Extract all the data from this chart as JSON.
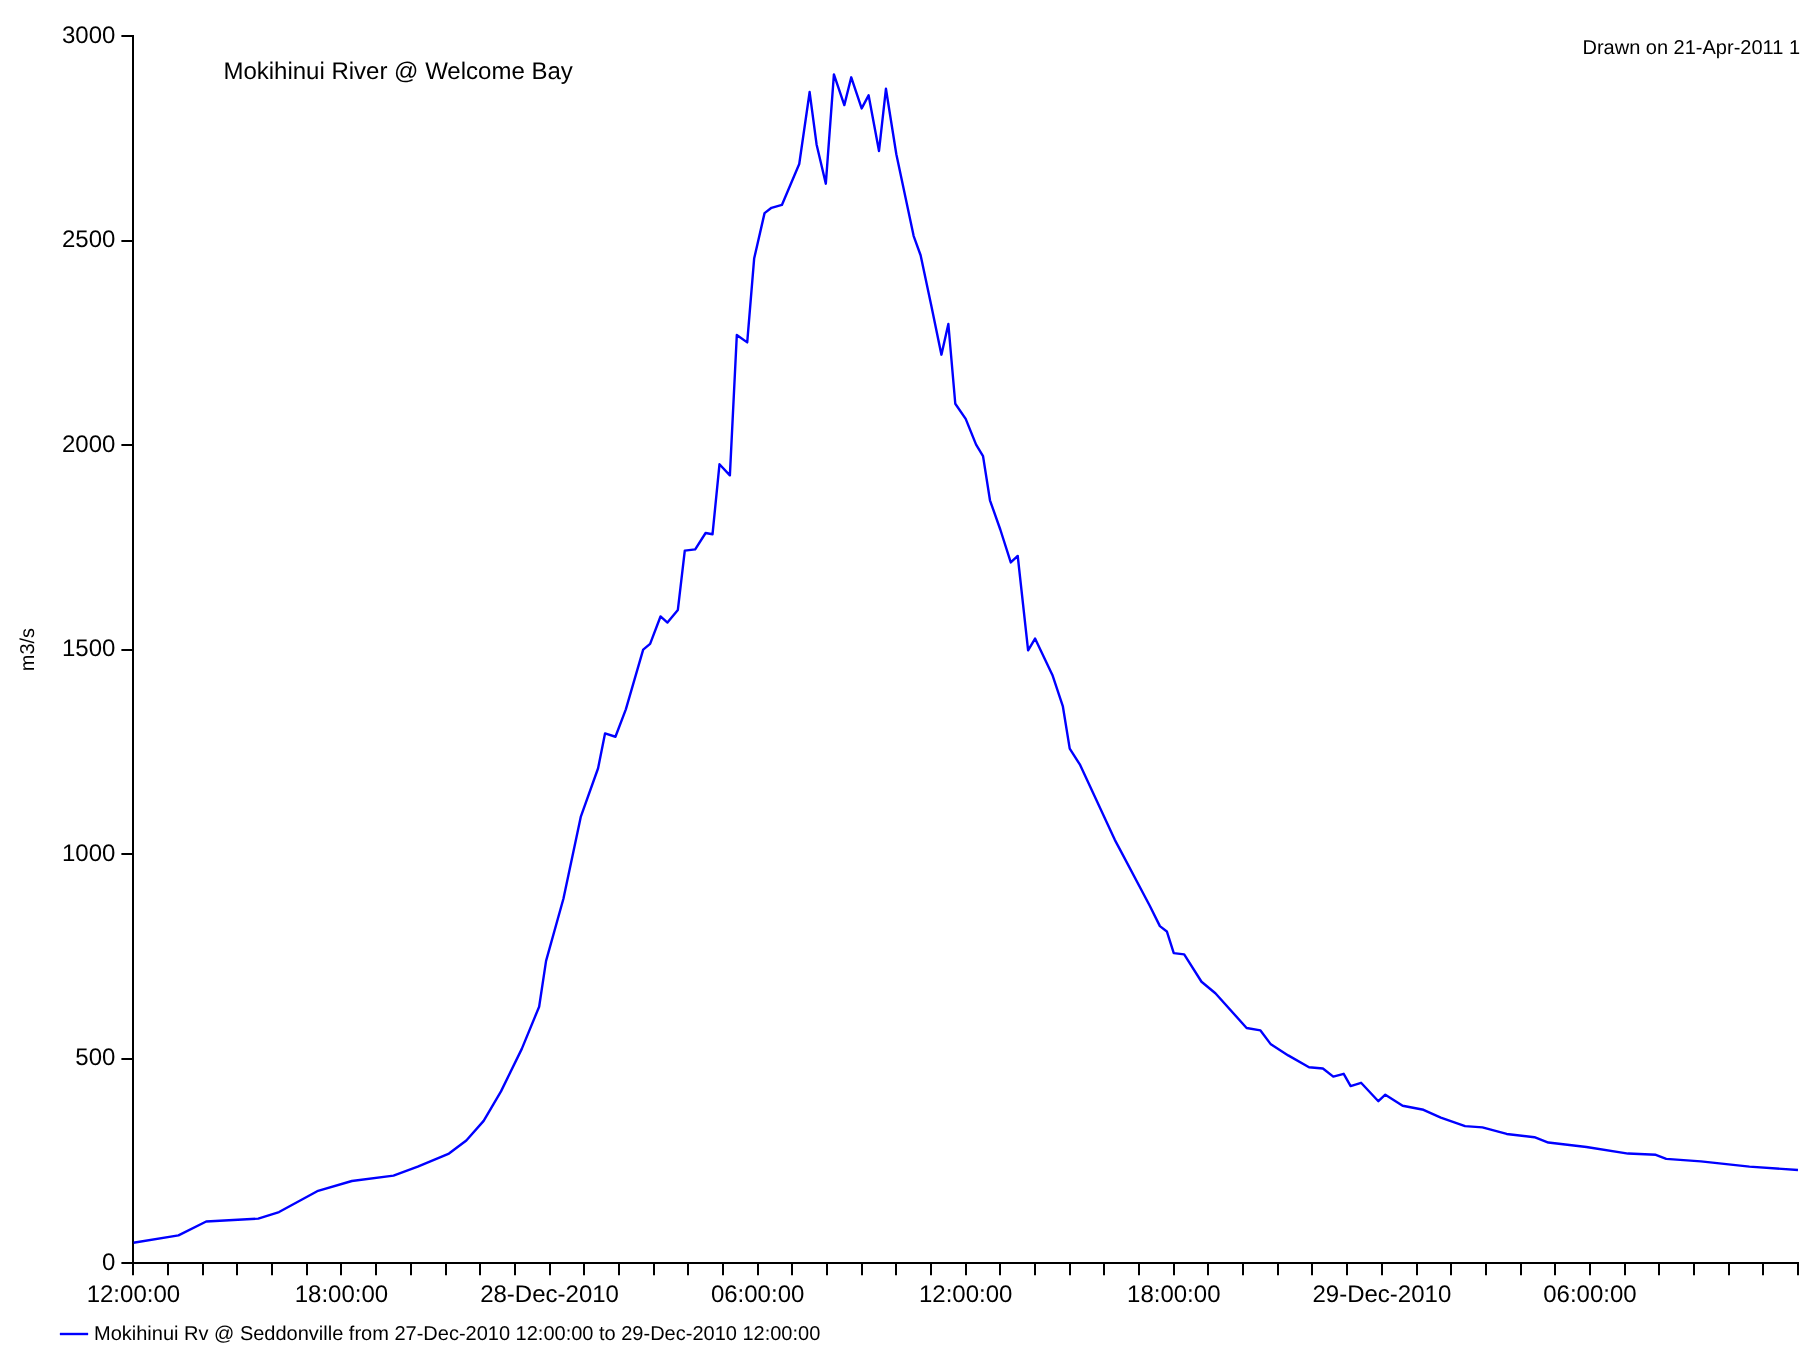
{
  "chart_data": {
    "type": "line",
    "title": "Mokihinui River @ Welcome Bay",
    "ylabel": "m3/s",
    "annotations": [
      "Drawn on 21-Apr-2011 1"
    ],
    "x": [
      "2010-12-27T12:00",
      "2010-12-27T13:18",
      "2010-12-27T14:06",
      "2010-12-27T15:36",
      "2010-12-27T16:12",
      "2010-12-27T17:18",
      "2010-12-27T18:18",
      "2010-12-27T19:30",
      "2010-12-27T20:12",
      "2010-12-27T21:06",
      "2010-12-27T21:36",
      "2010-12-27T22:06",
      "2010-12-27T22:36",
      "2010-12-27T23:12",
      "2010-12-27T23:42",
      "2010-12-27T23:54",
      "2010-12-28T00:24",
      "2010-12-28T00:54",
      "2010-12-28T01:24",
      "2010-12-28T01:36",
      "2010-12-28T01:54",
      "2010-12-28T02:12",
      "2010-12-28T02:42",
      "2010-12-28T02:54",
      "2010-12-28T03:12",
      "2010-12-28T03:24",
      "2010-12-28T03:42",
      "2010-12-28T03:54",
      "2010-12-28T04:12",
      "2010-12-28T04:30",
      "2010-12-28T04:42",
      "2010-12-28T04:54",
      "2010-12-28T05:12",
      "2010-12-28T05:24",
      "2010-12-28T05:42",
      "2010-12-28T05:54",
      "2010-12-28T06:12",
      "2010-12-28T06:24",
      "2010-12-28T06:42",
      "2010-12-28T07:12",
      "2010-12-28T07:30",
      "2010-12-28T07:42",
      "2010-12-28T07:58",
      "2010-12-28T08:12",
      "2010-12-28T08:30",
      "2010-12-28T08:42",
      "2010-12-28T09:00",
      "2010-12-28T09:12",
      "2010-12-28T09:30",
      "2010-12-28T09:42",
      "2010-12-28T10:00",
      "2010-12-28T10:30",
      "2010-12-28T10:42",
      "2010-12-28T11:00",
      "2010-12-28T11:18",
      "2010-12-28T11:30",
      "2010-12-28T11:42",
      "2010-12-28T12:00",
      "2010-12-28T12:18",
      "2010-12-28T12:30",
      "2010-12-28T12:42",
      "2010-12-28T13:00",
      "2010-12-28T13:18",
      "2010-12-28T13:30",
      "2010-12-28T13:48",
      "2010-12-28T14:00",
      "2010-12-28T14:30",
      "2010-12-28T14:48",
      "2010-12-28T15:00",
      "2010-12-28T15:18",
      "2010-12-28T16:18",
      "2010-12-28T16:30",
      "2010-12-28T17:18",
      "2010-12-28T17:36",
      "2010-12-28T17:48",
      "2010-12-28T18:00",
      "2010-12-28T18:18",
      "2010-12-28T18:48",
      "2010-12-28T19:12",
      "2010-12-28T20:06",
      "2010-12-28T20:30",
      "2010-12-28T20:48",
      "2010-12-28T21:18",
      "2010-12-28T21:54",
      "2010-12-28T22:18",
      "2010-12-28T22:36",
      "2010-12-28T22:54",
      "2010-12-28T23:06",
      "2010-12-28T23:24",
      "2010-12-28T23:54",
      "2010-12-29T00:06",
      "2010-12-29T00:36",
      "2010-12-29T01:12",
      "2010-12-29T01:42",
      "2010-12-29T02:24",
      "2010-12-29T02:54",
      "2010-12-29T03:36",
      "2010-12-29T04:24",
      "2010-12-29T04:48",
      "2010-12-29T05:54",
      "2010-12-29T07:06",
      "2010-12-29T07:54",
      "2010-12-29T08:12",
      "2010-12-29T09:12",
      "2010-12-29T10:36",
      "2010-12-29T12:00"
    ],
    "series": [
      {
        "name": "Mokihinui Rv @ Seddonville from 27-Dec-2010 12:00:00 to 29-Dec-2010 12:00:00",
        "color": "#0000ff",
        "values": [
          50,
          68,
          102,
          109,
          125,
          176,
          201,
          214,
          236,
          268,
          300,
          348,
          420,
          524,
          627,
          739,
          891,
          1091,
          1210,
          1295,
          1287,
          1354,
          1500,
          1514,
          1581,
          1566,
          1597,
          1742,
          1745,
          1785,
          1782,
          1953,
          1926,
          2269,
          2251,
          2456,
          2567,
          2580,
          2587,
          2687,
          2863,
          2735,
          2639,
          2906,
          2831,
          2899,
          2823,
          2855,
          2719,
          2871,
          2711,
          2511,
          2464,
          2344,
          2221,
          2296,
          2101,
          2064,
          2001,
          1973,
          1865,
          1793,
          1713,
          1729,
          1498,
          1527,
          1438,
          1362,
          1258,
          1218,
          1035,
          1003,
          875,
          824,
          811,
          758,
          755,
          688,
          660,
          575,
          569,
          535,
          508,
          479,
          476,
          456,
          463,
          433,
          441,
          396,
          412,
          385,
          375,
          356,
          335,
          332,
          316,
          308,
          295,
          284,
          268,
          265,
          255,
          249,
          236,
          228
        ]
      }
    ],
    "xlim": [
      "2010-12-27T12:00",
      "2010-12-29T12:00"
    ],
    "xticks": [
      {
        "value": "2010-12-27T12:00",
        "label": "12:00:00"
      },
      {
        "value": "2010-12-27T13:00",
        "label": null
      },
      {
        "value": "2010-12-27T14:00",
        "label": null
      },
      {
        "value": "2010-12-27T15:00",
        "label": null
      },
      {
        "value": "2010-12-27T16:00",
        "label": null
      },
      {
        "value": "2010-12-27T17:00",
        "label": null
      },
      {
        "value": "2010-12-27T18:00",
        "label": "18:00:00"
      },
      {
        "value": "2010-12-27T19:00",
        "label": null
      },
      {
        "value": "2010-12-27T20:00",
        "label": null
      },
      {
        "value": "2010-12-27T21:00",
        "label": null
      },
      {
        "value": "2010-12-27T22:00",
        "label": null
      },
      {
        "value": "2010-12-27T23:00",
        "label": null
      },
      {
        "value": "2010-12-28T00:00",
        "label": "28-Dec-2010"
      },
      {
        "value": "2010-12-28T01:00",
        "label": null
      },
      {
        "value": "2010-12-28T02:00",
        "label": null
      },
      {
        "value": "2010-12-28T03:00",
        "label": null
      },
      {
        "value": "2010-12-28T04:00",
        "label": null
      },
      {
        "value": "2010-12-28T05:00",
        "label": null
      },
      {
        "value": "2010-12-28T06:00",
        "label": "06:00:00"
      },
      {
        "value": "2010-12-28T07:00",
        "label": null
      },
      {
        "value": "2010-12-28T08:00",
        "label": null
      },
      {
        "value": "2010-12-28T09:00",
        "label": null
      },
      {
        "value": "2010-12-28T10:00",
        "label": null
      },
      {
        "value": "2010-12-28T11:00",
        "label": null
      },
      {
        "value": "2010-12-28T12:00",
        "label": "12:00:00"
      },
      {
        "value": "2010-12-28T13:00",
        "label": null
      },
      {
        "value": "2010-12-28T14:00",
        "label": null
      },
      {
        "value": "2010-12-28T15:00",
        "label": null
      },
      {
        "value": "2010-12-28T16:00",
        "label": null
      },
      {
        "value": "2010-12-28T17:00",
        "label": null
      },
      {
        "value": "2010-12-28T18:00",
        "label": "18:00:00"
      },
      {
        "value": "2010-12-28T19:00",
        "label": null
      },
      {
        "value": "2010-12-28T20:00",
        "label": null
      },
      {
        "value": "2010-12-28T21:00",
        "label": null
      },
      {
        "value": "2010-12-28T22:00",
        "label": null
      },
      {
        "value": "2010-12-28T23:00",
        "label": null
      },
      {
        "value": "2010-12-29T00:00",
        "label": "29-Dec-2010"
      },
      {
        "value": "2010-12-29T01:00",
        "label": null
      },
      {
        "value": "2010-12-29T02:00",
        "label": null
      },
      {
        "value": "2010-12-29T03:00",
        "label": null
      },
      {
        "value": "2010-12-29T04:00",
        "label": null
      },
      {
        "value": "2010-12-29T05:00",
        "label": null
      },
      {
        "value": "2010-12-29T06:00",
        "label": "06:00:00"
      },
      {
        "value": "2010-12-29T07:00",
        "label": null
      },
      {
        "value": "2010-12-29T08:00",
        "label": null
      },
      {
        "value": "2010-12-29T09:00",
        "label": null
      },
      {
        "value": "2010-12-29T10:00",
        "label": null
      },
      {
        "value": "2010-12-29T11:00",
        "label": null
      },
      {
        "value": "2010-12-29T12:00",
        "label": null
      }
    ],
    "ylim": [
      0,
      3000
    ],
    "yticks": [
      0,
      500,
      1000,
      1500,
      2000,
      2500,
      3000
    ],
    "grid": false,
    "legend": "bottom left",
    "marker": "none",
    "line_style": "solid"
  }
}
